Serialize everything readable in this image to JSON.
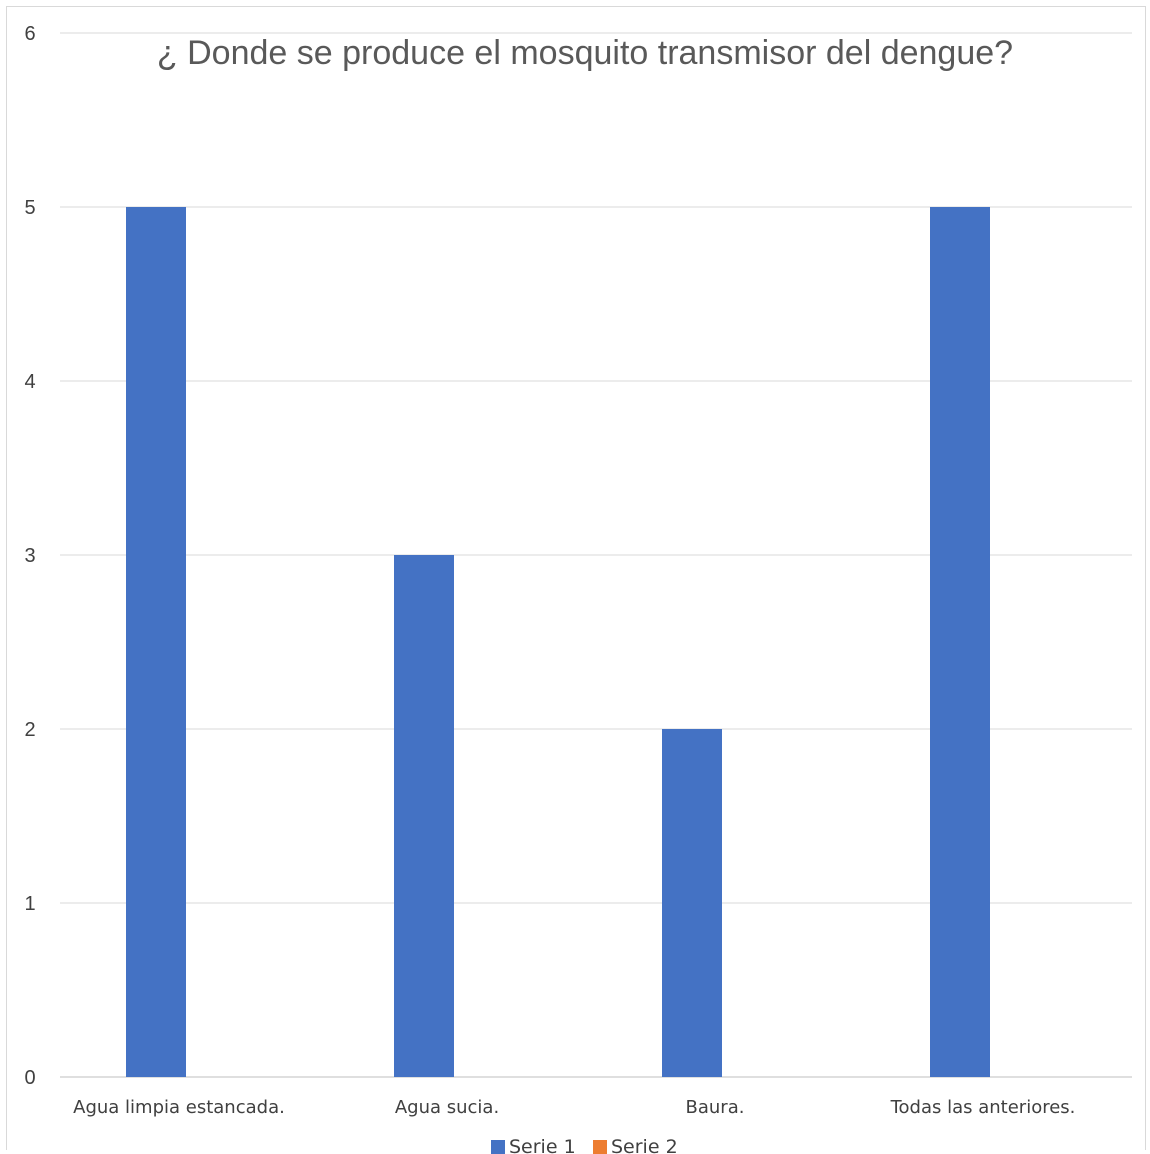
{
  "chart_data": {
    "type": "bar",
    "title": "¿ Donde se produce el mosquito transmisor del dengue?",
    "categories": [
      "Agua limpia estancada.",
      "Agua sucia.",
      "Baura.",
      "Todas las anteriores."
    ],
    "series": [
      {
        "name": "Serie 1",
        "values": [
          5,
          3,
          2,
          5
        ],
        "color": "#4472c4"
      },
      {
        "name": "Serie 2",
        "values": [
          0,
          0,
          0,
          0
        ],
        "color": "#ed7d31"
      }
    ],
    "ylim": [
      0,
      6
    ],
    "yticks": [
      0,
      1,
      2,
      3,
      4,
      5,
      6
    ],
    "grid": true,
    "legend": "bottom"
  }
}
